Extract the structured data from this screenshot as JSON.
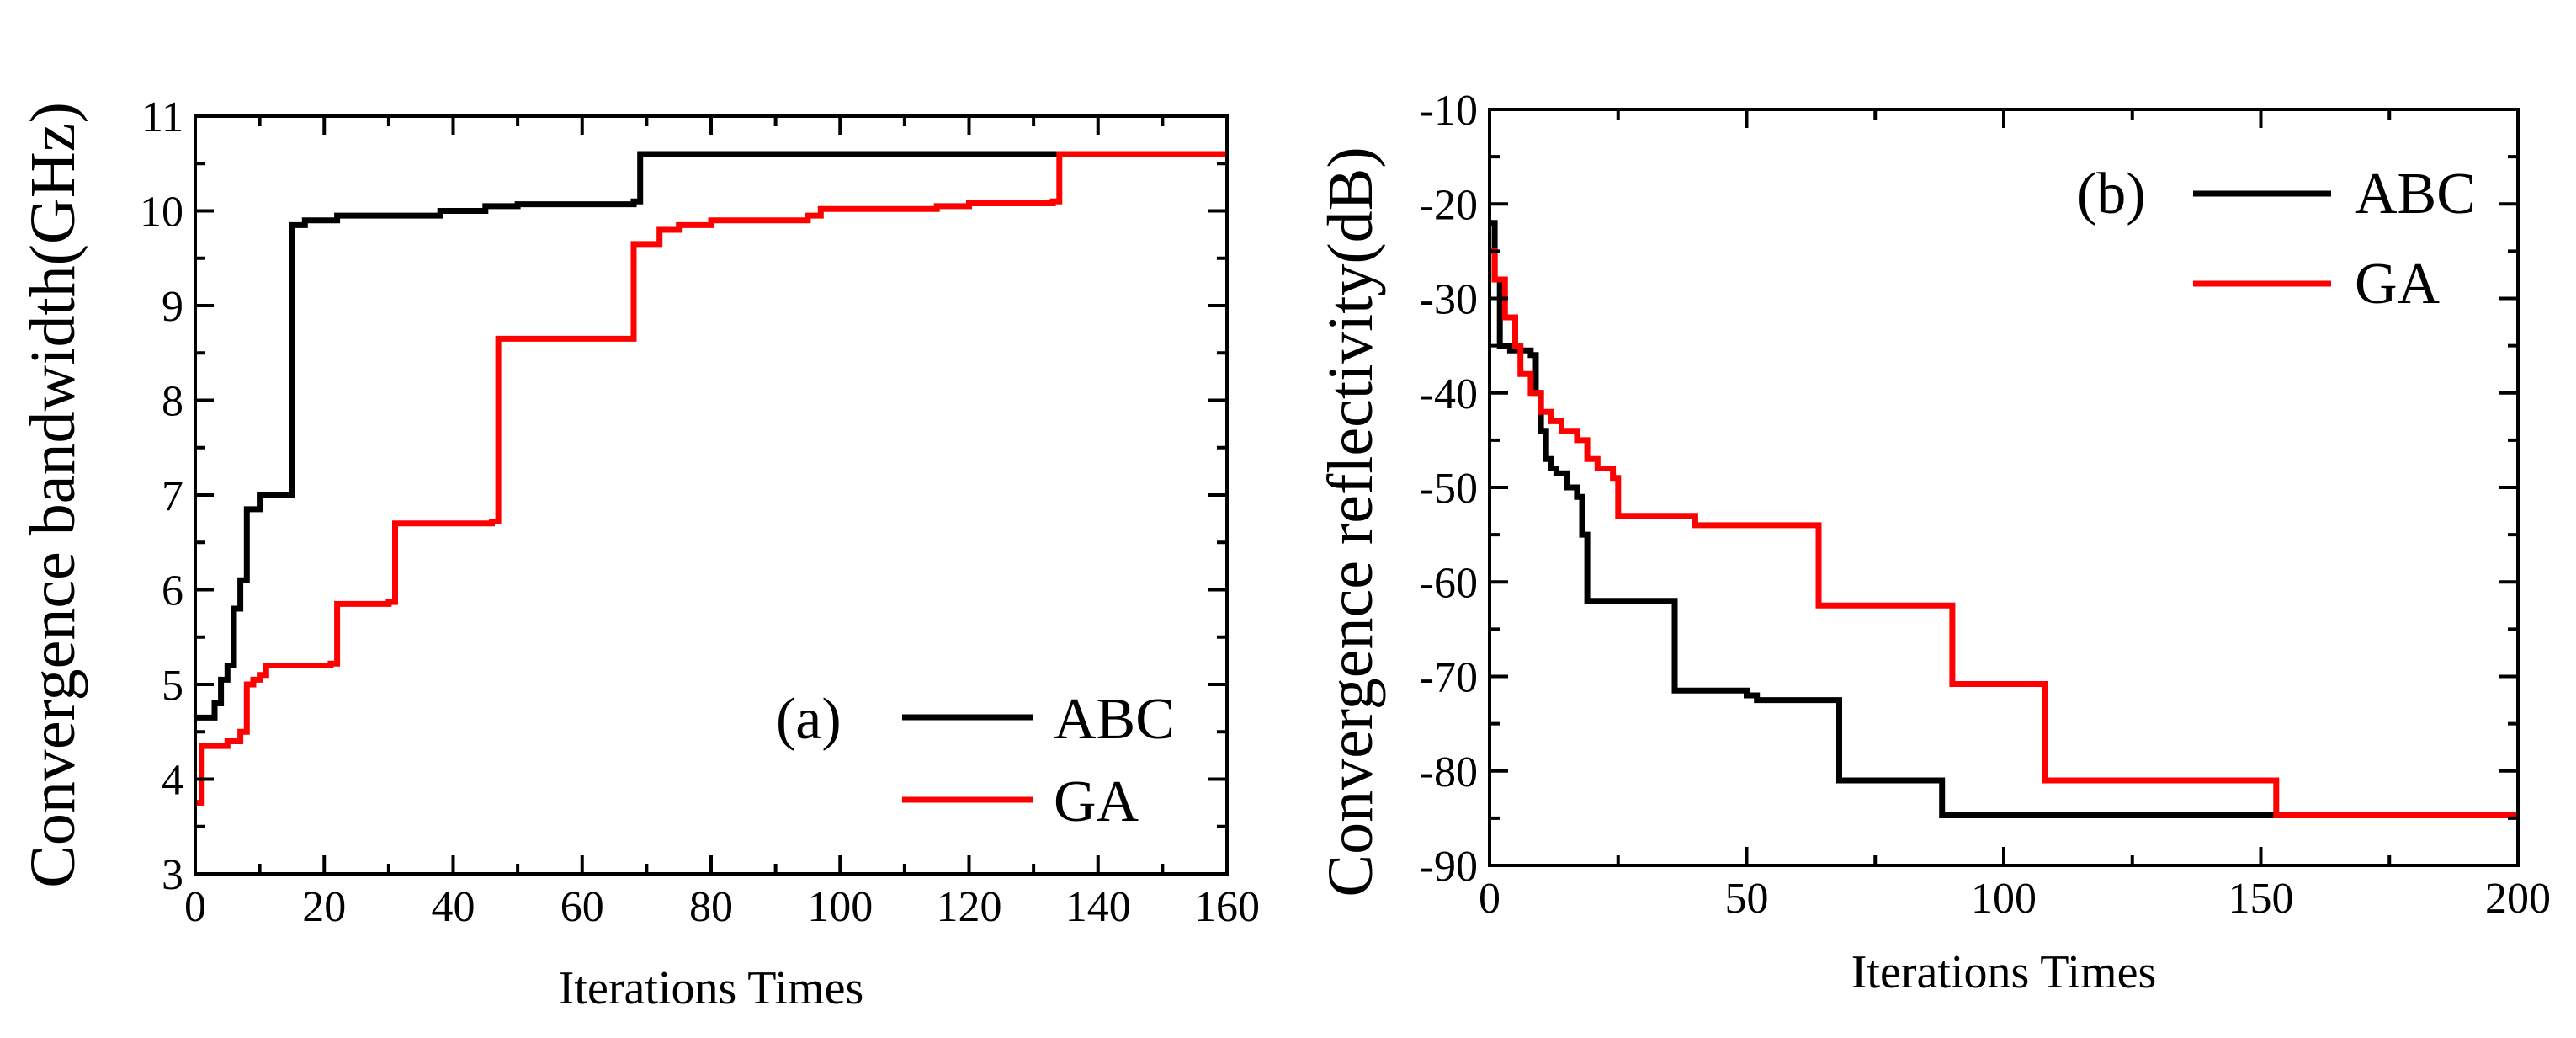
{
  "chart_data": [
    {
      "type": "line",
      "panel_label": "(a)",
      "title": "",
      "xlabel": "Iterations Times",
      "ylabel": "Convergence bandwidth(GHz)",
      "xlim": [
        0,
        160
      ],
      "ylim": [
        3,
        11
      ],
      "xticks": [
        0,
        20,
        40,
        60,
        80,
        100,
        120,
        140,
        160
      ],
      "yticks": [
        3,
        4,
        5,
        6,
        7,
        8,
        9,
        10,
        11
      ],
      "legend_position": "bottom-right",
      "series": [
        {
          "name": "ABC",
          "color": "#000000",
          "step": true,
          "points": [
            [
              0,
              4.65
            ],
            [
              2,
              4.65
            ],
            [
              3,
              4.8
            ],
            [
              4,
              5.05
            ],
            [
              5,
              5.2
            ],
            [
              6,
              5.8
            ],
            [
              7,
              6.1
            ],
            [
              8,
              6.85
            ],
            [
              9,
              6.85
            ],
            [
              10,
              7.0
            ],
            [
              14,
              7.0
            ],
            [
              15,
              9.85
            ],
            [
              17,
              9.9
            ],
            [
              19,
              9.9
            ],
            [
              22,
              9.95
            ],
            [
              38,
              10.0
            ],
            [
              45,
              10.05
            ],
            [
              50,
              10.07
            ],
            [
              68,
              10.1
            ],
            [
              69,
              10.6
            ],
            [
              160,
              10.6
            ]
          ]
        },
        {
          "name": "GA",
          "color": "#ff0000",
          "step": true,
          "points": [
            [
              0,
              3.75
            ],
            [
              1,
              4.35
            ],
            [
              5,
              4.4
            ],
            [
              7,
              4.5
            ],
            [
              8,
              5.0
            ],
            [
              9,
              5.05
            ],
            [
              10,
              5.1
            ],
            [
              11,
              5.2
            ],
            [
              21,
              5.22
            ],
            [
              22,
              5.85
            ],
            [
              30,
              5.87
            ],
            [
              31,
              6.7
            ],
            [
              46,
              6.72
            ],
            [
              47,
              8.65
            ],
            [
              67,
              8.65
            ],
            [
              68,
              9.65
            ],
            [
              72,
              9.8
            ],
            [
              75,
              9.85
            ],
            [
              80,
              9.9
            ],
            [
              95,
              9.95
            ],
            [
              97,
              10.02
            ],
            [
              115,
              10.05
            ],
            [
              120,
              10.08
            ],
            [
              133,
              10.1
            ],
            [
              134,
              10.6
            ],
            [
              160,
              10.6
            ]
          ]
        }
      ]
    },
    {
      "type": "line",
      "panel_label": "(b)",
      "title": "",
      "xlabel": "Iterations Times",
      "ylabel": "Convergence reflectivity(dB)",
      "xlim": [
        0,
        200
      ],
      "ylim": [
        -90,
        -10
      ],
      "xticks": [
        0,
        50,
        100,
        150,
        200
      ],
      "yticks": [
        -90,
        -80,
        -70,
        -60,
        -50,
        -40,
        -30,
        -20,
        -10
      ],
      "legend_position": "top-right",
      "series": [
        {
          "name": "ABC",
          "color": "#000000",
          "step": true,
          "points": [
            [
              0,
              -22
            ],
            [
              1,
              -28
            ],
            [
              2,
              -35
            ],
            [
              4,
              -35.5
            ],
            [
              8,
              -36
            ],
            [
              9,
              -40
            ],
            [
              10,
              -44
            ],
            [
              11,
              -47
            ],
            [
              12,
              -48
            ],
            [
              13,
              -48.5
            ],
            [
              15,
              -50
            ],
            [
              17,
              -51
            ],
            [
              18,
              -55
            ],
            [
              19,
              -62
            ],
            [
              35,
              -62
            ],
            [
              36,
              -71.5
            ],
            [
              50,
              -72
            ],
            [
              52,
              -72.5
            ],
            [
              67,
              -72.5
            ],
            [
              68,
              -81
            ],
            [
              87,
              -81
            ],
            [
              88,
              -84.7
            ],
            [
              200,
              -84.7
            ]
          ]
        },
        {
          "name": "GA",
          "color": "#ff0000",
          "step": true,
          "points": [
            [
              0,
              -25
            ],
            [
              1,
              -28
            ],
            [
              3,
              -32
            ],
            [
              5,
              -35
            ],
            [
              6,
              -38
            ],
            [
              8,
              -40
            ],
            [
              10,
              -42
            ],
            [
              12,
              -43
            ],
            [
              14,
              -44
            ],
            [
              17,
              -45
            ],
            [
              19,
              -47
            ],
            [
              21,
              -48
            ],
            [
              24,
              -49
            ],
            [
              25,
              -53
            ],
            [
              38,
              -53
            ],
            [
              40,
              -54
            ],
            [
              63,
              -54
            ],
            [
              64,
              -62.5
            ],
            [
              89,
              -62.5
            ],
            [
              90,
              -70.8
            ],
            [
              107,
              -70.8
            ],
            [
              108,
              -81
            ],
            [
              152,
              -81
            ],
            [
              153,
              -84.7
            ],
            [
              200,
              -84.7
            ]
          ]
        }
      ]
    }
  ]
}
